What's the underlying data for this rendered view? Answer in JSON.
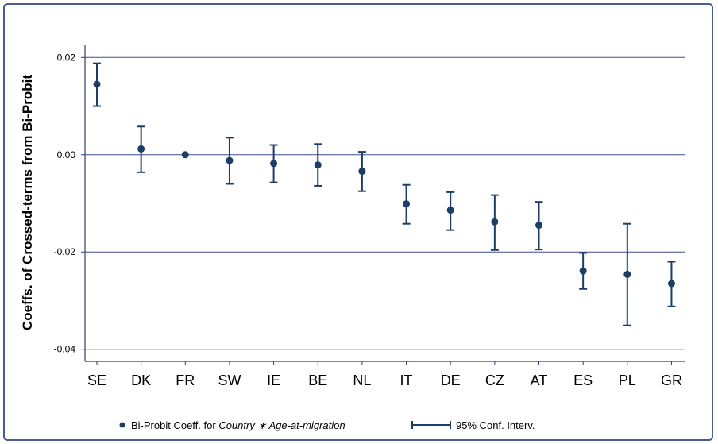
{
  "chart_data": {
    "type": "scatter",
    "ylabel": "Coeffs. of Crossed-terms from Bi-Probit",
    "categories": [
      "SE",
      "DK",
      "FR",
      "SW",
      "IE",
      "BE",
      "NL",
      "IT",
      "DE",
      "CZ",
      "AT",
      "ES",
      "PL",
      "GR"
    ],
    "series": [
      {
        "name": "Bi-Probit Coeff. for Country * Age-at-migration",
        "values": [
          0.0145,
          0.0012,
          0.0,
          -0.0012,
          -0.0018,
          -0.0021,
          -0.0034,
          -0.0101,
          -0.0114,
          -0.0138,
          -0.0145,
          -0.0239,
          -0.0246,
          -0.0265
        ]
      },
      {
        "name": "95% Conf. Interv.",
        "lower": [
          0.01,
          -0.0036,
          0.0,
          -0.006,
          -0.0057,
          -0.0064,
          -0.0075,
          -0.0142,
          -0.0155,
          -0.0196,
          -0.0195,
          -0.0276,
          -0.0351,
          -0.0312
        ],
        "upper": [
          0.0188,
          0.0058,
          0.0,
          0.0035,
          0.002,
          0.0022,
          0.0006,
          -0.0062,
          -0.0077,
          -0.0083,
          -0.0097,
          -0.0202,
          -0.0142,
          -0.022
        ]
      }
    ],
    "yticks": [
      0.02,
      0.0,
      -0.02,
      -0.04
    ],
    "ytick_labels": [
      "0.02",
      "0.00",
      "-0.02",
      "-0.04"
    ],
    "ylim": [
      -0.0425,
      0.0225
    ],
    "grid": true,
    "legend": {
      "position": "bottom",
      "point_prefix": "Bi-Probit Coeff. for ",
      "point_italic": "Country ∗ Age-at-migration",
      "ci_label": "95% Conf. Interv."
    },
    "colors": {
      "marker": "#1c3e66",
      "grid": "#3d4e8c",
      "axis": "#2f3f6e",
      "frame": "#4a5d97"
    }
  }
}
